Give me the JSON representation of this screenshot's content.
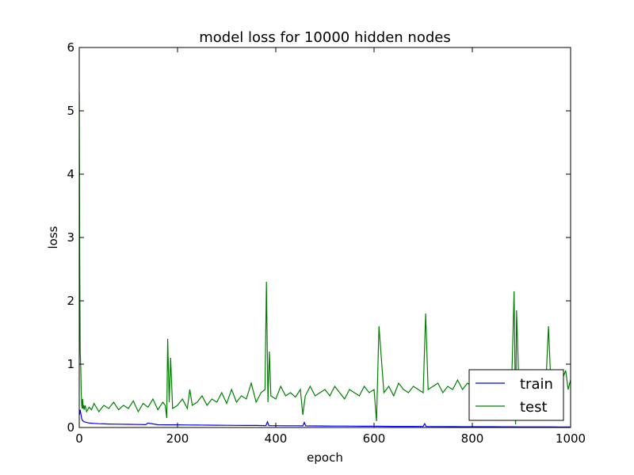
{
  "chart_data": {
    "type": "line",
    "title": "model loss for 10000 hidden nodes",
    "xlabel": "epoch",
    "ylabel": "loss",
    "xlim": [
      0,
      1000
    ],
    "ylim": [
      0,
      6
    ],
    "xticks": [
      0,
      200,
      400,
      600,
      800,
      1000
    ],
    "yticks": [
      0,
      1,
      2,
      3,
      4,
      5,
      6
    ],
    "grid": false,
    "legend_position": "lower-right",
    "series": [
      {
        "name": "train",
        "color": "#0000ff",
        "x": [
          0,
          1,
          2,
          3,
          4,
          5,
          6,
          8,
          10,
          15,
          20,
          30,
          40,
          50,
          60,
          80,
          100,
          120,
          135,
          140,
          160,
          180,
          200,
          220,
          240,
          260,
          280,
          300,
          320,
          340,
          360,
          380,
          383,
          386,
          400,
          420,
          440,
          455,
          458,
          461,
          480,
          500,
          520,
          540,
          560,
          580,
          600,
          620,
          640,
          660,
          680,
          700,
          703,
          706,
          720,
          740,
          760,
          780,
          800,
          820,
          840,
          860,
          880,
          900,
          920,
          940,
          960,
          980,
          1000
        ],
        "y": [
          0.2,
          0.22,
          0.28,
          0.23,
          0.18,
          0.14,
          0.12,
          0.1,
          0.09,
          0.08,
          0.07,
          0.065,
          0.06,
          0.058,
          0.055,
          0.052,
          0.05,
          0.048,
          0.045,
          0.07,
          0.044,
          0.043,
          0.042,
          0.04,
          0.039,
          0.038,
          0.036,
          0.035,
          0.034,
          0.033,
          0.032,
          0.03,
          0.09,
          0.03,
          0.029,
          0.028,
          0.027,
          0.026,
          0.08,
          0.026,
          0.025,
          0.024,
          0.023,
          0.022,
          0.021,
          0.02,
          0.02,
          0.019,
          0.018,
          0.018,
          0.017,
          0.016,
          0.06,
          0.016,
          0.015,
          0.015,
          0.014,
          0.013,
          0.013,
          0.012,
          0.012,
          0.011,
          0.011,
          0.01,
          0.01,
          0.01,
          0.01,
          0.009,
          0.009
        ]
      },
      {
        "name": "test",
        "color": "#008000",
        "x": [
          0,
          1,
          2,
          3,
          4,
          5,
          6,
          7,
          8,
          9,
          10,
          12,
          15,
          20,
          25,
          30,
          40,
          50,
          60,
          70,
          80,
          90,
          100,
          110,
          120,
          130,
          140,
          150,
          160,
          170,
          175,
          178,
          180,
          183,
          186,
          190,
          200,
          210,
          220,
          225,
          230,
          240,
          250,
          260,
          270,
          280,
          290,
          300,
          310,
          320,
          330,
          340,
          350,
          360,
          370,
          378,
          381,
          384,
          387,
          390,
          400,
          410,
          420,
          430,
          440,
          450,
          455,
          460,
          470,
          480,
          490,
          500,
          510,
          520,
          530,
          540,
          550,
          560,
          570,
          580,
          590,
          600,
          605,
          610,
          620,
          630,
          640,
          650,
          660,
          670,
          680,
          690,
          700,
          705,
          710,
          720,
          730,
          740,
          750,
          760,
          770,
          780,
          790,
          800,
          810,
          820,
          830,
          840,
          850,
          860,
          865,
          870,
          875,
          880,
          885,
          888,
          890,
          895,
          900,
          905,
          910,
          920,
          930,
          940,
          950,
          955,
          960,
          970,
          980,
          990,
          995,
          1000
        ],
        "y": [
          5.3,
          2.6,
          1.2,
          0.95,
          0.55,
          0.35,
          0.3,
          0.45,
          0.3,
          0.35,
          0.28,
          0.35,
          0.25,
          0.32,
          0.28,
          0.38,
          0.25,
          0.35,
          0.3,
          0.4,
          0.28,
          0.35,
          0.3,
          0.42,
          0.25,
          0.38,
          0.32,
          0.45,
          0.28,
          0.4,
          0.35,
          0.15,
          1.4,
          0.4,
          1.1,
          0.3,
          0.35,
          0.45,
          0.3,
          0.6,
          0.35,
          0.4,
          0.5,
          0.35,
          0.45,
          0.4,
          0.55,
          0.38,
          0.6,
          0.4,
          0.5,
          0.45,
          0.7,
          0.4,
          0.55,
          0.6,
          2.3,
          0.4,
          1.2,
          0.5,
          0.45,
          0.65,
          0.5,
          0.55,
          0.48,
          0.6,
          0.2,
          0.5,
          0.65,
          0.5,
          0.55,
          0.6,
          0.5,
          0.65,
          0.55,
          0.45,
          0.6,
          0.55,
          0.5,
          0.65,
          0.55,
          0.6,
          0.1,
          1.6,
          0.55,
          0.65,
          0.5,
          0.7,
          0.6,
          0.55,
          0.65,
          0.6,
          0.55,
          1.8,
          0.6,
          0.65,
          0.7,
          0.55,
          0.65,
          0.6,
          0.75,
          0.6,
          0.7,
          0.65,
          0.6,
          0.75,
          0.65,
          0.7,
          0.6,
          0.7,
          0.65,
          0.8,
          0.6,
          0.7,
          2.15,
          0.05,
          1.85,
          0.6,
          0.8,
          0.65,
          0.9,
          0.7,
          0.8,
          0.7,
          0.75,
          1.6,
          0.65,
          0.8,
          0.7,
          0.9,
          0.6,
          0.75
        ]
      }
    ]
  }
}
